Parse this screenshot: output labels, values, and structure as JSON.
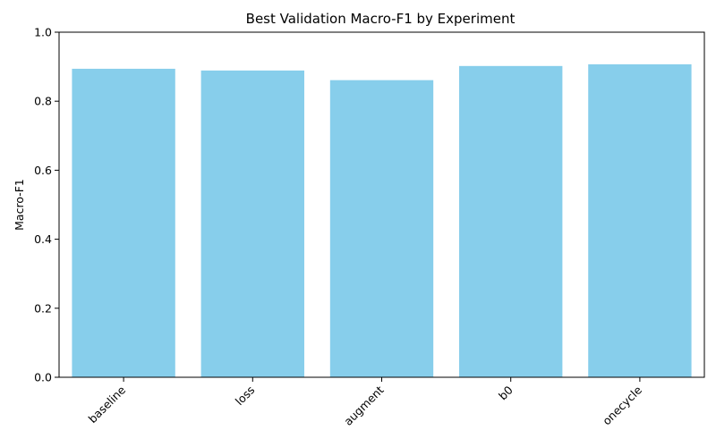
{
  "chart_data": {
    "type": "bar",
    "title": "Best Validation Macro-F1 by Experiment",
    "xlabel": "",
    "ylabel": "Macro-F1",
    "categories": [
      "baseline",
      "loss",
      "augment",
      "b0",
      "onecycle"
    ],
    "values": [
      0.894,
      0.889,
      0.861,
      0.902,
      0.907
    ],
    "ylim": [
      0,
      1.0
    ],
    "yticks": [
      "0.0",
      "0.2",
      "0.4",
      "0.6",
      "0.8",
      "1.0"
    ],
    "bar_color": "#87CEEB",
    "grid": false,
    "legend": "none"
  }
}
